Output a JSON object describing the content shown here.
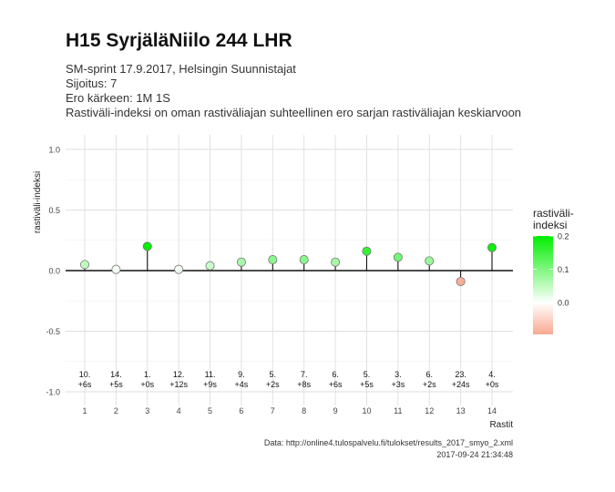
{
  "title": "H15 SyrjäläNiilo 244 LHR",
  "subtitle_lines": [
    "SM-sprint 17.9.2017, Helsingin Suunnistajat",
    "Sijoitus: 7",
    "Ero kärkeen: 1M 1S",
    "Rastiväli-indeksi on oman rastiväliajan suhteellinen ero sarjan rastiväliajan keskiarvoon"
  ],
  "caption_lines": [
    "Data: http://online4.tulospalvelu.fi/tulokset/results_2017_smyo_2.xml",
    "2017-09-24 21:34:48"
  ],
  "legend": {
    "title_lines": [
      "rastiväli-",
      "indeksi"
    ],
    "tick_labels": [
      "0.2",
      "0.1",
      "0.0"
    ],
    "tick_values": [
      0.2,
      0.1,
      0.0
    ],
    "range": [
      -0.095,
      0.2
    ],
    "colors": {
      "high": "#00ee00",
      "mid": "#ffffff",
      "low": "#f8a890"
    }
  },
  "chart_data": {
    "type": "scatter",
    "title": "H15 SyrjäläNiilo 244 LHR",
    "xlabel": "Rastit",
    "ylabel": "rastiväli-indeksi",
    "ylim": [
      -1.0,
      1.0
    ],
    "xlim": [
      1,
      14
    ],
    "y_ticks": [
      1.0,
      0.5,
      0.0,
      -0.5,
      -1.0
    ],
    "y_tick_labels": [
      "1.0",
      "0.5",
      "0.0",
      "-0.5",
      "-1.0"
    ],
    "grid": true,
    "reference_line": 0,
    "x": [
      1,
      2,
      3,
      4,
      5,
      6,
      7,
      8,
      9,
      10,
      11,
      12,
      13,
      14
    ],
    "values": [
      0.05,
      0.01,
      0.2,
      0.01,
      0.04,
      0.07,
      0.09,
      0.09,
      0.07,
      0.16,
      0.11,
      0.08,
      -0.09,
      0.19
    ],
    "annotations": [
      [
        "10.",
        "+6s"
      ],
      [
        "14.",
        "+5s"
      ],
      [
        "1.",
        "+0s"
      ],
      [
        "12.",
        "+12s"
      ],
      [
        "11.",
        "+9s"
      ],
      [
        "9.",
        "+4s"
      ],
      [
        "5.",
        "+2s"
      ],
      [
        "7.",
        "+8s"
      ],
      [
        "6.",
        "+6s"
      ],
      [
        "5.",
        "+5s"
      ],
      [
        "3.",
        "+3s"
      ],
      [
        "6.",
        "+2s"
      ],
      [
        "23.",
        "+24s"
      ],
      [
        "4.",
        "+0s"
      ]
    ]
  }
}
